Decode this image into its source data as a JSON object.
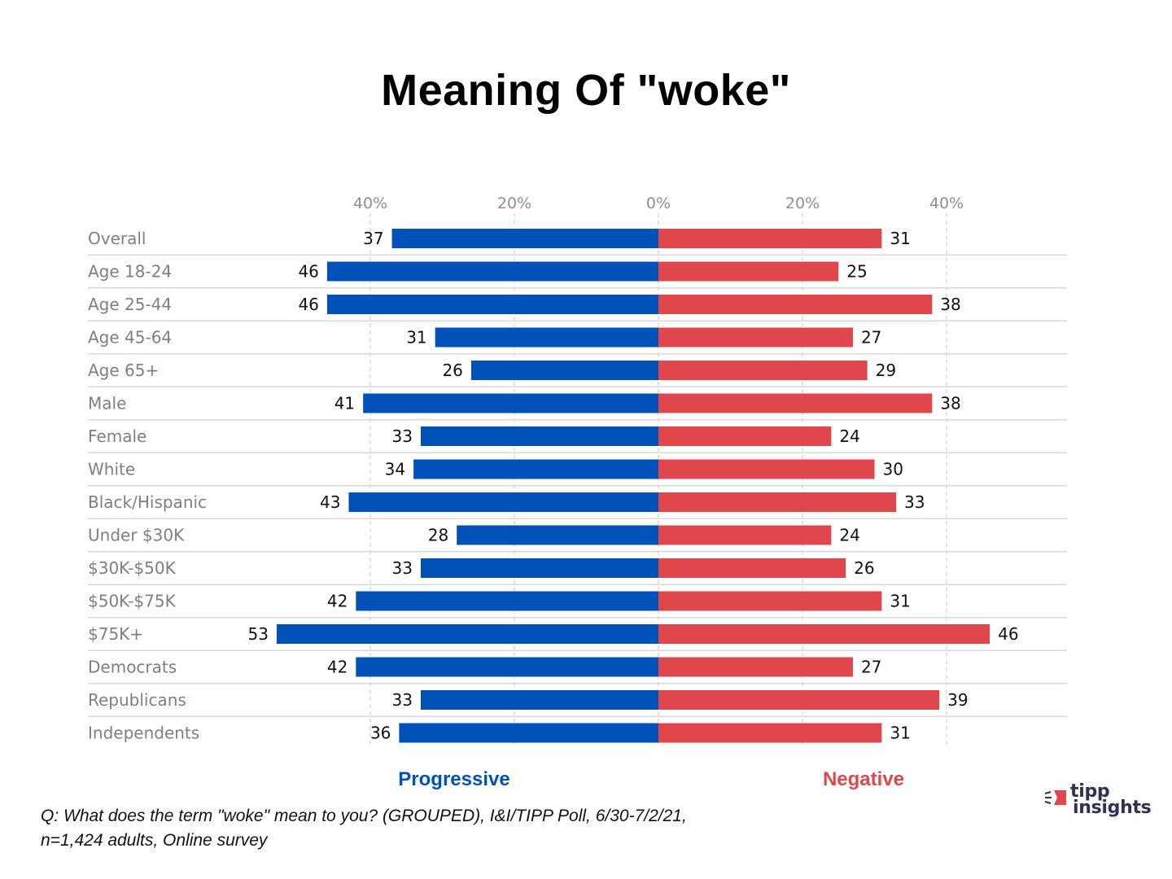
{
  "chart_data": {
    "type": "bar",
    "orientation": "horizontal-diverging",
    "title": "Meaning Of \"woke\"",
    "xlabel": "",
    "ylabel": "",
    "x_ticks": [
      "40%",
      "20%",
      "0%",
      "20%",
      "40%"
    ],
    "x_tick_values": [
      -40,
      -20,
      0,
      20,
      40
    ],
    "xlim": [
      -55,
      57
    ],
    "grid": true,
    "categories": [
      "Overall",
      "Age 18-24",
      "Age 25-44",
      "Age 45-64",
      "Age 65+",
      "Male",
      "Female",
      "White",
      "Black/Hispanic",
      "Under $30K",
      "$30K-$50K",
      "$50K-$75K",
      "$75K+",
      "Democrats",
      "Republicans",
      "Independents"
    ],
    "series": [
      {
        "name": "Progressive",
        "side": "left",
        "color": "#0052b8",
        "values": [
          37,
          46,
          46,
          31,
          26,
          41,
          33,
          34,
          43,
          28,
          33,
          42,
          53,
          42,
          33,
          36
        ]
      },
      {
        "name": "Negative",
        "side": "right",
        "color": "#e0474c",
        "values": [
          31,
          25,
          38,
          27,
          29,
          38,
          24,
          30,
          33,
          24,
          26,
          31,
          46,
          27,
          39,
          31
        ]
      }
    ],
    "legend": [
      "Progressive",
      "Negative"
    ],
    "legend_position": "bottom"
  },
  "footnote": {
    "line1": "Q:  What does the term \"woke\" mean to you? (GROUPED), I&I/TIPP Poll, 6/30-7/2/21,",
    "line2": "n=1,424 adults, Online survey"
  },
  "logo": {
    "line1": "tipp",
    "line2": "insights",
    "accent_color": "#e0474c",
    "text_color": "#2a3350"
  },
  "colors": {
    "progressive": "#0052b8",
    "negative": "#e0474c",
    "category_text": "#7a7f88",
    "gridline": "#c8c8c8",
    "separator": "#d9d9d9"
  }
}
